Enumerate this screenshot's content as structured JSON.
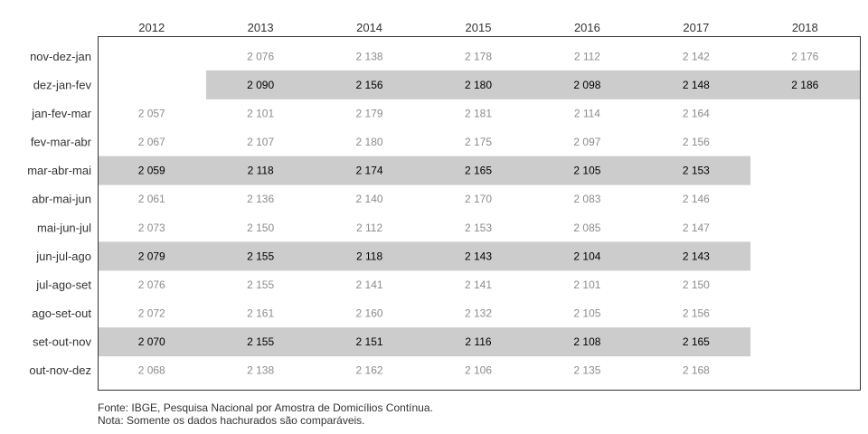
{
  "chart_data": {
    "type": "table",
    "columns": [
      "2012",
      "2013",
      "2014",
      "2015",
      "2016",
      "2017",
      "2018"
    ],
    "rows": [
      {
        "label": "nov-dez-jan",
        "highlight": false,
        "values": [
          null,
          "2 076",
          "2 138",
          "2 178",
          "2 112",
          "2 142",
          "2 176"
        ]
      },
      {
        "label": "dez-jan-fev",
        "highlight": true,
        "values": [
          null,
          "2 090",
          "2 156",
          "2 180",
          "2 098",
          "2 148",
          "2 186"
        ]
      },
      {
        "label": "jan-fev-mar",
        "highlight": false,
        "values": [
          "2 057",
          "2 101",
          "2 179",
          "2 181",
          "2 114",
          "2 164",
          null
        ]
      },
      {
        "label": "fev-mar-abr",
        "highlight": false,
        "values": [
          "2 067",
          "2 107",
          "2 180",
          "2 175",
          "2 097",
          "2 156",
          null
        ]
      },
      {
        "label": "mar-abr-mai",
        "highlight": true,
        "values": [
          "2 059",
          "2 118",
          "2 174",
          "2 165",
          "2 105",
          "2 153",
          null
        ]
      },
      {
        "label": "abr-mai-jun",
        "highlight": false,
        "values": [
          "2 061",
          "2 136",
          "2 140",
          "2 170",
          "2 083",
          "2 146",
          null
        ]
      },
      {
        "label": "mai-jun-jul",
        "highlight": false,
        "values": [
          "2 073",
          "2 150",
          "2 112",
          "2 153",
          "2 085",
          "2 147",
          null
        ]
      },
      {
        "label": "jun-jul-ago",
        "highlight": true,
        "values": [
          "2 079",
          "2 155",
          "2 118",
          "2 143",
          "2 104",
          "2 143",
          null
        ]
      },
      {
        "label": "jul-ago-set",
        "highlight": false,
        "values": [
          "2 076",
          "2 155",
          "2 141",
          "2 141",
          "2 101",
          "2 150",
          null
        ]
      },
      {
        "label": "ago-set-out",
        "highlight": false,
        "values": [
          "2 072",
          "2 161",
          "2 160",
          "2 132",
          "2 105",
          "2 156",
          null
        ]
      },
      {
        "label": "set-out-nov",
        "highlight": true,
        "values": [
          "2 070",
          "2 155",
          "2 151",
          "2 116",
          "2 108",
          "2 165",
          null
        ]
      },
      {
        "label": "out-nov-dez",
        "highlight": false,
        "values": [
          "2 068",
          "2 138",
          "2 162",
          "2 106",
          "2 135",
          "2 168",
          null
        ]
      }
    ]
  },
  "footer": {
    "source": "Fonte: IBGE, Pesquisa Nacional por Amostra de Domicílios Contínua.",
    "note": " Nota: Somente os dados hachurados são comparáveis."
  },
  "colors": {
    "highlight_band": "#cccccc",
    "highlight_text": "#000000",
    "normal_text": "#8c8c8c",
    "label_text": "#333333",
    "border": "#333333"
  }
}
